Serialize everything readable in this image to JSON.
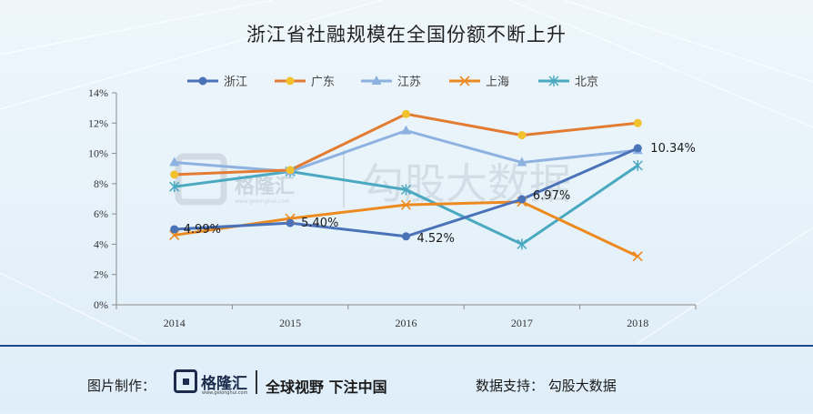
{
  "title": "浙江省社融规模在全国份额不断上升",
  "chart_data": {
    "type": "line",
    "categories": [
      "2014",
      "2015",
      "2016",
      "2017",
      "2018"
    ],
    "ylim": [
      0,
      14
    ],
    "yticks": [
      "0%",
      "2%",
      "4%",
      "6%",
      "8%",
      "10%",
      "12%",
      "14%"
    ],
    "legend_position": "top",
    "grid": false,
    "series": [
      {
        "name": "浙江",
        "color": "#4a72b8",
        "marker": "circle",
        "values": [
          4.99,
          5.4,
          4.52,
          6.97,
          10.34
        ]
      },
      {
        "name": "广东",
        "color": "#e37c33",
        "marker": "circle-yellow",
        "values": [
          8.6,
          8.9,
          12.6,
          11.2,
          12.0
        ]
      },
      {
        "name": "江苏",
        "color": "#8eb2e0",
        "marker": "triangle",
        "values": [
          9.4,
          8.8,
          11.5,
          9.4,
          10.2
        ]
      },
      {
        "name": "上海",
        "color": "#ed8a1f",
        "marker": "x",
        "values": [
          4.6,
          5.7,
          6.6,
          6.8,
          3.2
        ]
      },
      {
        "name": "北京",
        "color": "#4aa9c0",
        "marker": "star",
        "values": [
          7.8,
          8.8,
          7.6,
          4.0,
          9.2
        ]
      }
    ],
    "data_labels": [
      {
        "series": "浙江",
        "index": 0,
        "text": "4.99%"
      },
      {
        "series": "浙江",
        "index": 1,
        "text": "5.40%"
      },
      {
        "series": "浙江",
        "index": 2,
        "text": "4.52%"
      },
      {
        "series": "浙江",
        "index": 3,
        "text": "6.97%"
      },
      {
        "series": "浙江",
        "index": 4,
        "text": "10.34%"
      }
    ]
  },
  "watermark": {
    "logo_text": "格隆汇",
    "url": "www.gelonghui.com",
    "text": "勾股大数据"
  },
  "footer": {
    "credit_label": "图片制作：",
    "logo_text": "格隆汇",
    "logo_url": "www.gelonghui.com",
    "slogan": "全球视野 下注中国",
    "source": "数据支持： 勾股大数据"
  }
}
